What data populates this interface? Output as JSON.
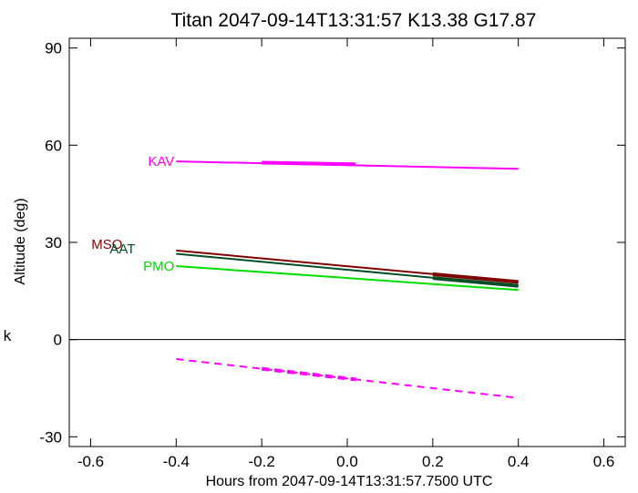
{
  "chart_data": {
    "type": "line",
    "title": "Titan 2047-09-14T13:31:57  K13.38  G17.87",
    "xlabel": "Hours from 2047-09-14T13:31:57.7500 UTC",
    "ylabel": "Altitude (deg)",
    "xlim": [
      -0.65,
      0.65
    ],
    "ylim": [
      -33,
      93
    ],
    "x_ticks": [
      -0.6,
      -0.4,
      -0.2,
      0.0,
      0.2,
      0.4,
      0.6
    ],
    "x_tick_labels": [
      "-0.6",
      "-0.4",
      "-0.2",
      "0.0",
      "0.2",
      "0.4",
      "0.6"
    ],
    "y_ticks": [
      -30,
      0,
      30,
      60,
      90
    ],
    "y_tick_labels": [
      "-30",
      "0",
      "30",
      "60",
      "90"
    ],
    "zero_line": 0,
    "side_mark": "k",
    "series": [
      {
        "name": "KAV",
        "color": "#ff00ff",
        "style": "solid",
        "x": [
          -0.4,
          0.4
        ],
        "y": [
          55.0,
          52.7
        ],
        "highlight": {
          "x": [
            -0.2,
            0.02
          ],
          "y": [
            54.6,
            54.1
          ]
        },
        "label_pos": "left"
      },
      {
        "name": "MSO",
        "color": "#800000",
        "style": "solid",
        "x": [
          -0.4,
          0.4
        ],
        "y": [
          27.5,
          17.8
        ],
        "highlight": {
          "x": [
            0.2,
            0.4
          ],
          "y": [
            20.2,
            17.8
          ]
        },
        "label_pos": "left"
      },
      {
        "name": "AAT",
        "color": "#004d26",
        "style": "solid",
        "x": [
          -0.4,
          0.4
        ],
        "y": [
          26.5,
          16.6
        ],
        "highlight": {
          "x": [
            0.2,
            0.4
          ],
          "y": [
            19.0,
            16.6
          ]
        },
        "label_pos": "left"
      },
      {
        "name": "PMO",
        "color": "#00dd00",
        "style": "solid",
        "x": [
          -0.4,
          0.4
        ],
        "y": [
          22.7,
          15.3
        ],
        "label_pos": "left"
      },
      {
        "name": "",
        "color": "#ff00ff",
        "style": "dashed",
        "x": [
          -0.4,
          0.4
        ],
        "y": [
          -6.0,
          -18.0
        ],
        "highlight": {
          "x": [
            -0.2,
            0.02
          ],
          "y": [
            -9.0,
            -12.3
          ]
        }
      }
    ]
  }
}
